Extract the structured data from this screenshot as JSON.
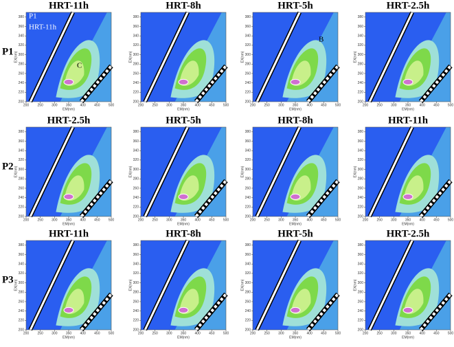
{
  "row_labels": [
    "P1",
    "P2",
    "P3"
  ],
  "chart_data": [
    {
      "type": "contour",
      "title": "HRT-11h",
      "xlabel": "EM(nm)",
      "ylabel": "EX(nm)",
      "xlim": [
        200,
        500
      ],
      "ylim": [
        200,
        390
      ],
      "xticks": [
        200,
        250,
        300,
        350,
        400,
        450,
        500
      ],
      "yticks": [
        200,
        220,
        240,
        260,
        280,
        300,
        320,
        340,
        360,
        380
      ],
      "annotations": [
        "P1",
        "HRT-11h",
        "C"
      ]
    },
    {
      "type": "contour",
      "title": "HRT-8h",
      "xlabel": "EM(nm)",
      "ylabel": "EX(nm)",
      "xlim": [
        200,
        500
      ],
      "ylim": [
        200,
        390
      ],
      "xticks": [
        200,
        250,
        300,
        350,
        400,
        450,
        500
      ],
      "yticks": [
        200,
        220,
        240,
        260,
        280,
        300,
        320,
        340,
        360,
        380
      ]
    },
    {
      "type": "contour",
      "title": "HRT-5h",
      "xlabel": "EM(nm)",
      "ylabel": "EX(nm)",
      "xlim": [
        200,
        500
      ],
      "ylim": [
        200,
        390
      ],
      "xticks": [
        200,
        250,
        300,
        350,
        400,
        450,
        500
      ],
      "yticks": [
        200,
        220,
        240,
        260,
        280,
        300,
        320,
        340,
        360,
        380
      ],
      "annotations": [
        "B"
      ]
    },
    {
      "type": "contour",
      "title": "HRT-2.5h",
      "xlabel": "EM(nm)",
      "ylabel": "EX(nm)",
      "xlim": [
        200,
        500
      ],
      "ylim": [
        200,
        390
      ],
      "xticks": [
        200,
        250,
        300,
        350,
        400,
        450,
        500
      ],
      "yticks": [
        200,
        220,
        240,
        260,
        280,
        300,
        320,
        340,
        360,
        380
      ]
    },
    {
      "type": "contour",
      "title": "HRT-2.5h",
      "xlabel": "EM(nm)",
      "ylabel": "EX(nm)",
      "xlim": [
        200,
        500
      ],
      "ylim": [
        200,
        390
      ],
      "xticks": [
        200,
        250,
        300,
        350,
        400,
        450,
        500
      ],
      "yticks": [
        200,
        220,
        240,
        260,
        280,
        300,
        320,
        340,
        360,
        380
      ]
    },
    {
      "type": "contour",
      "title": "HRT-5h",
      "xlabel": "EM(nm)",
      "ylabel": "EX(nm)",
      "xlim": [
        200,
        500
      ],
      "ylim": [
        200,
        390
      ],
      "xticks": [
        200,
        250,
        300,
        350,
        400,
        450,
        500
      ],
      "yticks": [
        200,
        220,
        240,
        260,
        280,
        300,
        320,
        340,
        360,
        380
      ]
    },
    {
      "type": "contour",
      "title": "HRT-8h",
      "xlabel": "EM(nm)",
      "ylabel": "EX(nm)",
      "xlim": [
        200,
        500
      ],
      "ylim": [
        200,
        390
      ],
      "xticks": [
        200,
        250,
        300,
        350,
        400,
        450,
        500
      ],
      "yticks": [
        200,
        220,
        240,
        260,
        280,
        300,
        320,
        340,
        360,
        380
      ]
    },
    {
      "type": "contour",
      "title": "HRT-11h",
      "xlabel": "EM(nm)",
      "ylabel": "EX(nm)",
      "xlim": [
        200,
        500
      ],
      "ylim": [
        200,
        390
      ],
      "xticks": [
        200,
        250,
        300,
        350,
        400,
        450,
        500
      ],
      "yticks": [
        200,
        220,
        240,
        260,
        280,
        300,
        320,
        340,
        360,
        380
      ]
    },
    {
      "type": "contour",
      "title": "HRT-11h",
      "xlabel": "EM(nm)",
      "ylabel": "EX(nm)",
      "xlim": [
        200,
        500
      ],
      "ylim": [
        200,
        390
      ],
      "xticks": [
        200,
        250,
        300,
        350,
        400,
        450,
        500
      ],
      "yticks": [
        200,
        220,
        240,
        260,
        280,
        300,
        320,
        340,
        360,
        380
      ]
    },
    {
      "type": "contour",
      "title": "HRT-8h",
      "xlabel": "EM(nm)",
      "ylabel": "EX(nm)",
      "xlim": [
        200,
        500
      ],
      "ylim": [
        200,
        390
      ],
      "xticks": [
        200,
        250,
        300,
        350,
        400,
        450,
        500
      ],
      "yticks": [
        200,
        220,
        240,
        260,
        280,
        300,
        320,
        340,
        360,
        380
      ]
    },
    {
      "type": "contour",
      "title": "HRT-5h",
      "xlabel": "EM(nm)",
      "ylabel": "EX(nm)",
      "xlim": [
        200,
        500
      ],
      "ylim": [
        200,
        390
      ],
      "xticks": [
        200,
        250,
        300,
        350,
        400,
        450,
        500
      ],
      "yticks": [
        200,
        220,
        240,
        260,
        280,
        300,
        320,
        340,
        360,
        380
      ]
    },
    {
      "type": "contour",
      "title": "HRT-2.5h",
      "xlabel": "EM(nm)",
      "ylabel": "EX(nm)",
      "xlim": [
        200,
        500
      ],
      "ylim": [
        200,
        390
      ],
      "xticks": [
        200,
        250,
        300,
        350,
        400,
        450,
        500
      ],
      "yticks": [
        200,
        220,
        240,
        260,
        280,
        300,
        320,
        340,
        360,
        380
      ]
    }
  ]
}
